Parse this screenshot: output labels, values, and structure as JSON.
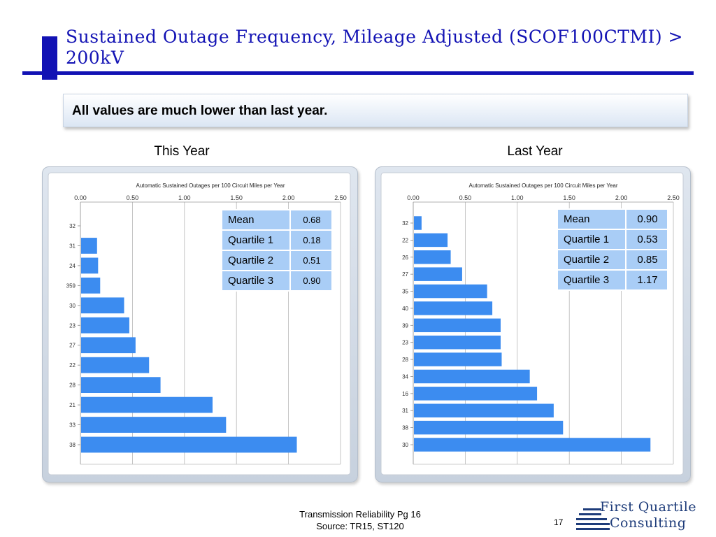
{
  "slide": {
    "title": "Sustained Outage Frequency, Mileage Adjusted (SCOF100CTMI) > 200kV",
    "callout": "All values are much lower than last year.",
    "footer_line1": "Transmission Reliability Pg 16",
    "footer_line2": "Source: TR15, ST120",
    "page_number": "17",
    "logo_line1": "First Quartile",
    "logo_line2": "Consulting",
    "accent_color": "#1212b4",
    "bar_color": "#3c8cf0"
  },
  "chart_data": [
    {
      "type": "bar",
      "orientation": "horizontal",
      "heading": "This Year",
      "title": "Automatic Sustained Outages per 100 Circuit Miles per Year",
      "xlim": [
        0,
        2.5
      ],
      "xticks": [
        "0.00",
        "0.50",
        "1.00",
        "1.50",
        "2.00",
        "2.50"
      ],
      "categories": [
        "32",
        "31",
        "24",
        "359",
        "30",
        "23",
        "27",
        "22",
        "28",
        "21",
        "33",
        "38"
      ],
      "values": [
        0,
        0.16,
        0.17,
        0.19,
        0.42,
        0.47,
        0.53,
        0.66,
        0.77,
        1.27,
        1.4,
        2.08
      ],
      "grid": true,
      "stats": [
        {
          "label": "Mean",
          "value": "0.68"
        },
        {
          "label": "Quartile 1",
          "value": "0.18"
        },
        {
          "label": "Quartile 2",
          "value": "0.51"
        },
        {
          "label": "Quartile 3",
          "value": "0.90"
        }
      ]
    },
    {
      "type": "bar",
      "orientation": "horizontal",
      "heading": "Last Year",
      "title": "Automatic Sustained Outages per 100 Circuit Miles per Year",
      "xlim": [
        0,
        2.5
      ],
      "xticks": [
        "0.00",
        "0.50",
        "1.00",
        "1.50",
        "2.00",
        "2.50"
      ],
      "categories": [
        "32",
        "22",
        "26",
        "27",
        "35",
        "40",
        "39",
        "23",
        "28",
        "34",
        "16",
        "31",
        "38",
        "30"
      ],
      "values": [
        0.08,
        0.33,
        0.36,
        0.47,
        0.71,
        0.76,
        0.84,
        0.84,
        0.85,
        1.12,
        1.19,
        1.35,
        1.44,
        2.28
      ],
      "grid": true,
      "stats": [
        {
          "label": "Mean",
          "value": "0.90"
        },
        {
          "label": "Quartile 1",
          "value": "0.53"
        },
        {
          "label": "Quartile 2",
          "value": "0.85"
        },
        {
          "label": "Quartile 3",
          "value": "1.17"
        }
      ]
    }
  ]
}
